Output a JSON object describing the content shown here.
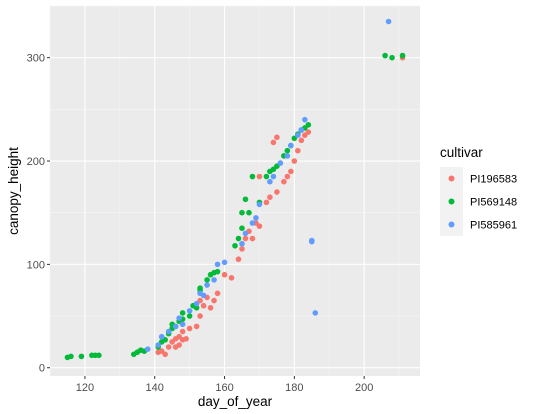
{
  "chart_data": {
    "type": "scatter",
    "xlabel": "day_of_year",
    "ylabel": "canopy_height",
    "xlim": [
      110,
      216
    ],
    "ylim": [
      -8,
      350
    ],
    "x_ticks": [
      120,
      140,
      160,
      180,
      200
    ],
    "y_ticks": [
      0,
      100,
      200,
      300
    ],
    "grid": true,
    "legend": {
      "title": "cultivar",
      "position": "right"
    },
    "series": [
      {
        "name": "PI196583",
        "color": "#F8766D",
        "points": [
          [
            141,
            15
          ],
          [
            142,
            16
          ],
          [
            143,
            13
          ],
          [
            144,
            20
          ],
          [
            145,
            25
          ],
          [
            146,
            20
          ],
          [
            146,
            28
          ],
          [
            147,
            22
          ],
          [
            147,
            30
          ],
          [
            148,
            27
          ],
          [
            148,
            35
          ],
          [
            149,
            28
          ],
          [
            150,
            38
          ],
          [
            152,
            40
          ],
          [
            153,
            50
          ],
          [
            153,
            65
          ],
          [
            154,
            60
          ],
          [
            155,
            68
          ],
          [
            156,
            58
          ],
          [
            157,
            65
          ],
          [
            158,
            72
          ],
          [
            160,
            90
          ],
          [
            162,
            87
          ],
          [
            164,
            105
          ],
          [
            165,
            115
          ],
          [
            166,
            125
          ],
          [
            167,
            132
          ],
          [
            168,
            125
          ],
          [
            169,
            140
          ],
          [
            170,
            137
          ],
          [
            170,
            185
          ],
          [
            172,
            160
          ],
          [
            173,
            165
          ],
          [
            174,
            218
          ],
          [
            175,
            223
          ],
          [
            175,
            170
          ],
          [
            177,
            180
          ],
          [
            178,
            185
          ],
          [
            179,
            190
          ],
          [
            180,
            200
          ],
          [
            181,
            210
          ],
          [
            182,
            220
          ],
          [
            183,
            225
          ],
          [
            184,
            228
          ],
          [
            211,
            300
          ]
        ]
      },
      {
        "name": "PI569148",
        "color": "#00BA38",
        "points": [
          [
            115,
            10
          ],
          [
            116,
            11
          ],
          [
            119,
            11
          ],
          [
            122,
            12
          ],
          [
            123,
            12
          ],
          [
            124,
            12
          ],
          [
            134,
            13
          ],
          [
            135,
            15
          ],
          [
            136,
            17
          ],
          [
            137,
            16
          ],
          [
            141,
            20
          ],
          [
            142,
            25
          ],
          [
            143,
            27
          ],
          [
            144,
            33
          ],
          [
            145,
            38
          ],
          [
            145,
            42
          ],
          [
            146,
            40
          ],
          [
            147,
            45
          ],
          [
            148,
            47
          ],
          [
            148,
            53
          ],
          [
            150,
            50
          ],
          [
            151,
            60
          ],
          [
            152,
            58
          ],
          [
            153,
            75
          ],
          [
            153,
            77
          ],
          [
            155,
            85
          ],
          [
            156,
            90
          ],
          [
            157,
            92
          ],
          [
            158,
            93
          ],
          [
            163,
            118
          ],
          [
            164,
            125
          ],
          [
            165,
            135
          ],
          [
            165,
            150
          ],
          [
            166,
            163
          ],
          [
            167,
            150
          ],
          [
            168,
            185
          ],
          [
            170,
            160
          ],
          [
            172,
            185
          ],
          [
            173,
            190
          ],
          [
            174,
            192
          ],
          [
            175,
            195
          ],
          [
            177,
            205
          ],
          [
            178,
            210
          ],
          [
            179,
            215
          ],
          [
            180,
            222
          ],
          [
            181,
            226
          ],
          [
            182,
            230
          ],
          [
            183,
            232
          ],
          [
            184,
            235
          ],
          [
            206,
            302
          ],
          [
            208,
            300
          ],
          [
            211,
            302
          ]
        ]
      },
      {
        "name": "PI585961",
        "color": "#619CFF",
        "points": [
          [
            138,
            18
          ],
          [
            141,
            22
          ],
          [
            142,
            30
          ],
          [
            144,
            35
          ],
          [
            146,
            40
          ],
          [
            147,
            48
          ],
          [
            148,
            42
          ],
          [
            150,
            55
          ],
          [
            152,
            62
          ],
          [
            153,
            72
          ],
          [
            154,
            70
          ],
          [
            155,
            80
          ],
          [
            157,
            85
          ],
          [
            158,
            100
          ],
          [
            160,
            102
          ],
          [
            165,
            120
          ],
          [
            166,
            130
          ],
          [
            168,
            140
          ],
          [
            169,
            145
          ],
          [
            170,
            158
          ],
          [
            173,
            180
          ],
          [
            174,
            185
          ],
          [
            176,
            198
          ],
          [
            178,
            205
          ],
          [
            179,
            215
          ],
          [
            181,
            225
          ],
          [
            182,
            230
          ],
          [
            183,
            240
          ],
          [
            185,
            123
          ],
          [
            185,
            122
          ],
          [
            186,
            53
          ],
          [
            207,
            335
          ]
        ]
      }
    ]
  }
}
